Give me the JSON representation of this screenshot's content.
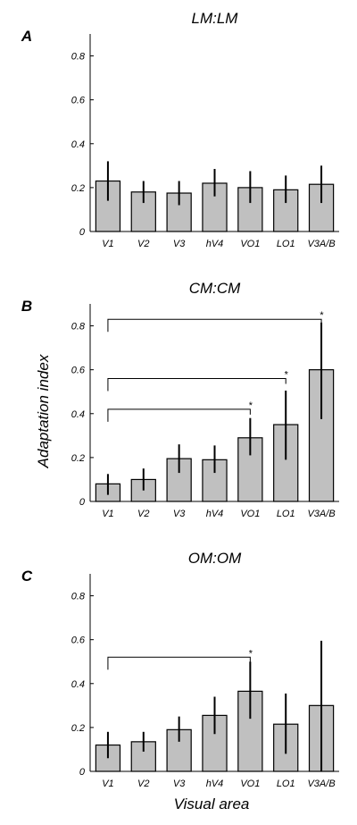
{
  "chart_data": [
    {
      "type": "bar",
      "panel_letter": "A",
      "title": "LM:LM",
      "categories": [
        "V1",
        "V2",
        "V3",
        "hV4",
        "VO1",
        "LO1",
        "V3A/B"
      ],
      "values": [
        0.23,
        0.18,
        0.175,
        0.22,
        0.2,
        0.19,
        0.215
      ],
      "error_low": [
        0.14,
        0.13,
        0.12,
        0.16,
        0.13,
        0.13,
        0.13
      ],
      "error_high": [
        0.32,
        0.23,
        0.23,
        0.285,
        0.275,
        0.255,
        0.3
      ],
      "ylim": [
        0,
        0.9
      ],
      "yticks": [
        "0",
        "0.2",
        "0.4",
        "0.6",
        "0.8"
      ],
      "grid": false,
      "significance": []
    },
    {
      "type": "bar",
      "panel_letter": "B",
      "title": "CM:CM",
      "categories": [
        "V1",
        "V2",
        "V3",
        "hV4",
        "VO1",
        "LO1",
        "V3A/B"
      ],
      "values": [
        0.08,
        0.1,
        0.195,
        0.19,
        0.29,
        0.35,
        0.6
      ],
      "error_low": [
        0.03,
        0.05,
        0.13,
        0.13,
        0.21,
        0.19,
        0.375
      ],
      "error_high": [
        0.125,
        0.15,
        0.26,
        0.255,
        0.38,
        0.505,
        0.815
      ],
      "ylim": [
        0,
        0.9
      ],
      "yticks": [
        "0",
        "0.2",
        "0.4",
        "0.6",
        "0.8"
      ],
      "ylabel": "Adaptation index",
      "grid": false,
      "significance": [
        {
          "from": "V1",
          "to": "VO1",
          "level": 0.42,
          "label": "*"
        },
        {
          "from": "V1",
          "to": "LO1",
          "level": 0.56,
          "label": "*"
        },
        {
          "from": "V1",
          "to": "V3A/B",
          "level": 0.83,
          "label": "*"
        }
      ]
    },
    {
      "type": "bar",
      "panel_letter": "C",
      "title": "OM:OM",
      "categories": [
        "V1",
        "V2",
        "V3",
        "hV4",
        "VO1",
        "LO1",
        "V3A/B"
      ],
      "values": [
        0.12,
        0.135,
        0.19,
        0.255,
        0.365,
        0.215,
        0.3
      ],
      "error_low": [
        0.06,
        0.09,
        0.135,
        0.17,
        0.24,
        0.08,
        0.0
      ],
      "error_high": [
        0.18,
        0.18,
        0.25,
        0.34,
        0.5,
        0.355,
        0.595
      ],
      "ylim": [
        0,
        0.9
      ],
      "yticks": [
        "0",
        "0.2",
        "0.4",
        "0.6",
        "0.8"
      ],
      "xlabel": "Visual area",
      "grid": false,
      "significance": [
        {
          "from": "V1",
          "to": "VO1",
          "level": 0.52,
          "label": "*"
        }
      ]
    }
  ],
  "colors": {
    "bar_fill": "#c0c0c0",
    "bar_stroke": "#000000",
    "errorbar": "#000000",
    "axis": "#000000",
    "background": "#ffffff"
  }
}
